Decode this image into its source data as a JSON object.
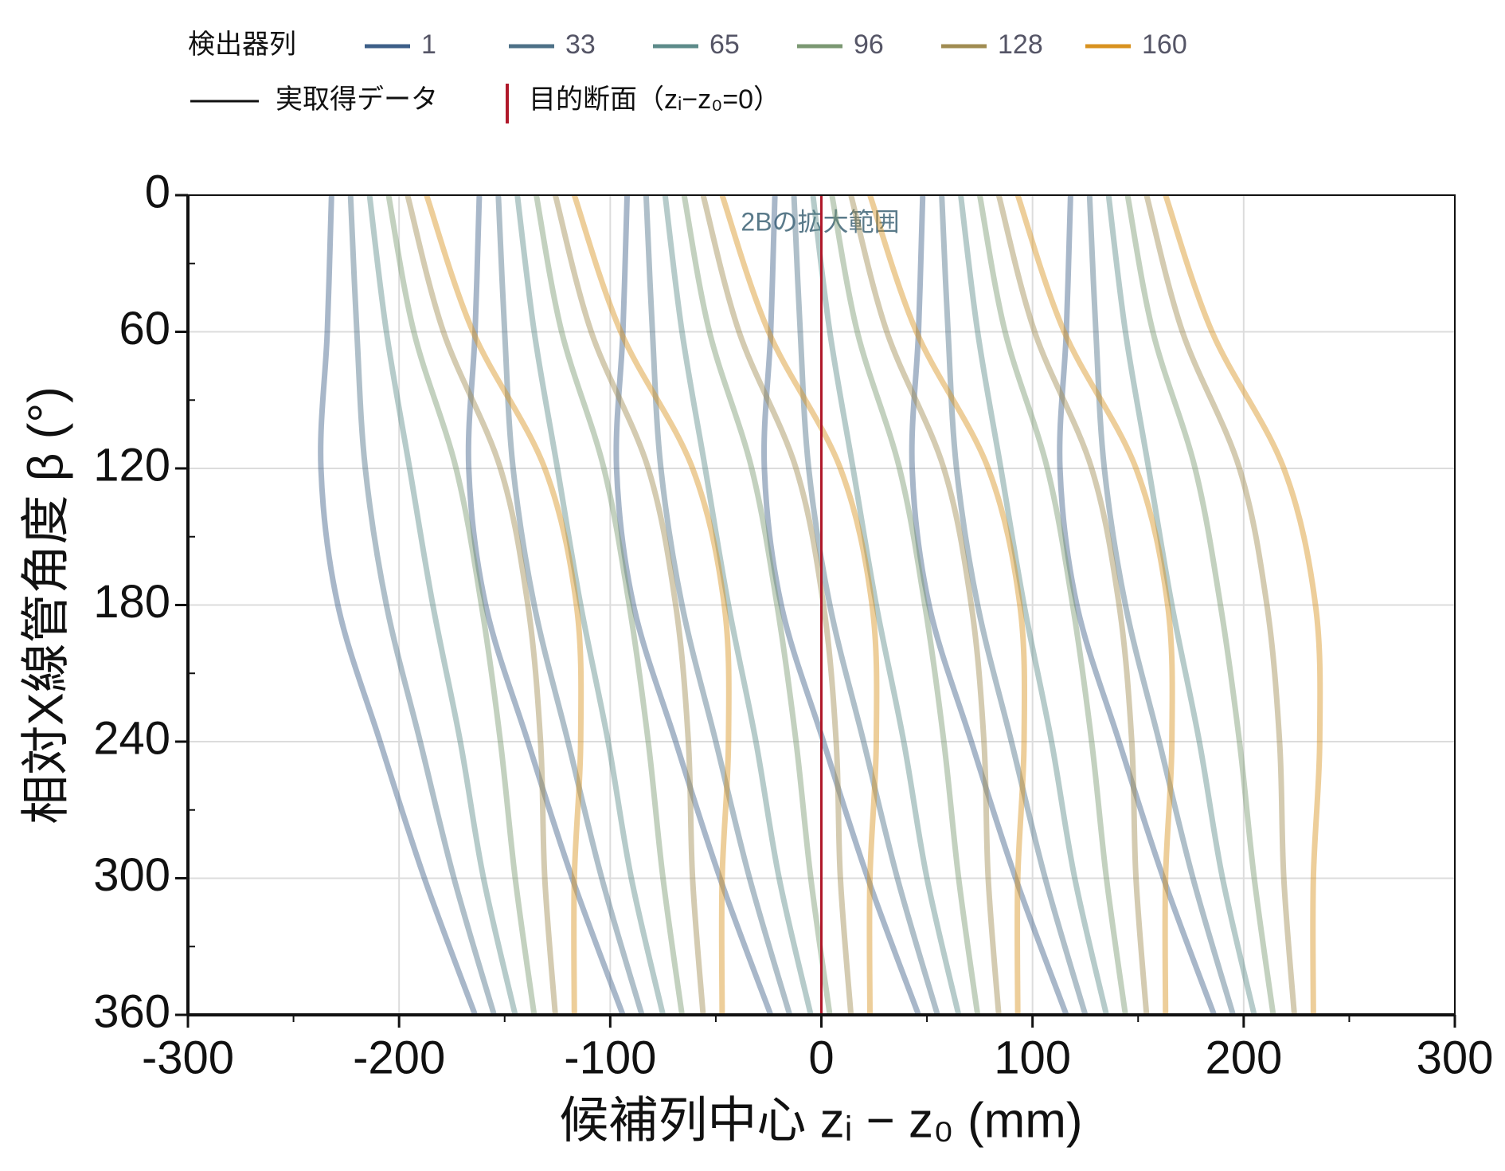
{
  "chart_data": {
    "type": "line",
    "legend_title": "検出器列",
    "measured_label": "実取得データ",
    "target_line": {
      "label": "目的断面（zᵢ−z₀=0）",
      "x": 0,
      "color": "#b0182a"
    },
    "annotation": "2Bの拡大範囲",
    "xlabel": "候補列中心  zᵢ − z₀  (mm)",
    "ylabel": "相対X線管角度  β  (°)",
    "xlim": [
      -300,
      300
    ],
    "xticks": [
      -300,
      -200,
      -100,
      0,
      100,
      200,
      300
    ],
    "xminorticks": [
      -250,
      -150,
      -50,
      50,
      150,
      250
    ],
    "ylim": [
      0,
      360
    ],
    "yticks": [
      0,
      60,
      120,
      180,
      240,
      300,
      360
    ],
    "yminorticks": [
      30,
      90,
      150,
      210,
      270,
      330
    ],
    "y_inverted": true,
    "grid": true,
    "y": [
      0,
      60,
      120,
      180,
      240,
      300,
      360
    ],
    "series": [
      {
        "name": "1",
        "color": "#3d5f88",
        "values": [
          [
            -232,
            -234,
            -237,
            -229,
            -209,
            -188,
            -164
          ],
          [
            -162,
            -164,
            -167,
            -159,
            -139,
            -118,
            -94
          ],
          [
            -92,
            -94,
            -97,
            -89,
            -69,
            -48,
            -24
          ],
          [
            -22,
            -24,
            -27,
            -19,
            1,
            22,
            46
          ],
          [
            48,
            46,
            43,
            51,
            71,
            92,
            116
          ],
          [
            118,
            116,
            113,
            121,
            141,
            162,
            186
          ]
        ]
      },
      {
        "name": "33",
        "color": "#4d7087",
        "values": [
          [
            -223,
            -220,
            -216,
            -206,
            -190,
            -174,
            -155
          ],
          [
            -153,
            -150,
            -146,
            -136,
            -120,
            -104,
            -85
          ],
          [
            -83,
            -80,
            -76,
            -66,
            -50,
            -34,
            -15
          ],
          [
            -13,
            -10,
            -6,
            4,
            20,
            36,
            55
          ],
          [
            57,
            60,
            64,
            74,
            90,
            106,
            125
          ],
          [
            127,
            130,
            134,
            144,
            160,
            176,
            195
          ]
        ]
      },
      {
        "name": "65",
        "color": "#5d8b8a",
        "values": [
          [
            -214,
            -206,
            -195,
            -184,
            -171,
            -160,
            -145
          ],
          [
            -144,
            -136,
            -125,
            -114,
            -101,
            -90,
            -75
          ],
          [
            -74,
            -66,
            -55,
            -44,
            -31,
            -20,
            -5
          ],
          [
            -4,
            4,
            15,
            26,
            39,
            50,
            65
          ],
          [
            66,
            74,
            85,
            96,
            109,
            120,
            135
          ],
          [
            136,
            144,
            155,
            166,
            179,
            190,
            205
          ]
        ]
      },
      {
        "name": "96",
        "color": "#7b9872",
        "values": [
          [
            -205,
            -193,
            -173,
            -161,
            -152,
            -145,
            -136
          ],
          [
            -135,
            -123,
            -103,
            -91,
            -82,
            -75,
            -66
          ],
          [
            -65,
            -53,
            -33,
            -21,
            -12,
            -5,
            4
          ],
          [
            5,
            17,
            37,
            49,
            58,
            65,
            74
          ],
          [
            75,
            87,
            107,
            119,
            128,
            135,
            144
          ],
          [
            145,
            157,
            177,
            189,
            198,
            205,
            214
          ]
        ]
      },
      {
        "name": "128",
        "color": "#a08c52",
        "values": [
          [
            -196,
            -179,
            -152,
            -139,
            -133,
            -131,
            -126
          ],
          [
            -126,
            -109,
            -82,
            -69,
            -63,
            -61,
            -56
          ],
          [
            -56,
            -39,
            -12,
            1,
            7,
            9,
            14
          ],
          [
            14,
            31,
            58,
            71,
            77,
            79,
            84
          ],
          [
            84,
            101,
            128,
            141,
            147,
            149,
            154
          ],
          [
            154,
            171,
            198,
            211,
            217,
            219,
            224
          ]
        ]
      },
      {
        "name": "160",
        "color": "#d8921f",
        "values": [
          [
            -187,
            -165,
            -131,
            -116,
            -114,
            -117,
            -117
          ],
          [
            -117,
            -95,
            -61,
            -46,
            -44,
            -47,
            -47
          ],
          [
            -47,
            -25,
            9,
            24,
            26,
            23,
            23
          ],
          [
            23,
            45,
            79,
            94,
            96,
            93,
            93
          ],
          [
            93,
            115,
            149,
            164,
            166,
            163,
            163
          ],
          [
            163,
            185,
            219,
            234,
            236,
            233,
            233
          ]
        ]
      }
    ]
  }
}
